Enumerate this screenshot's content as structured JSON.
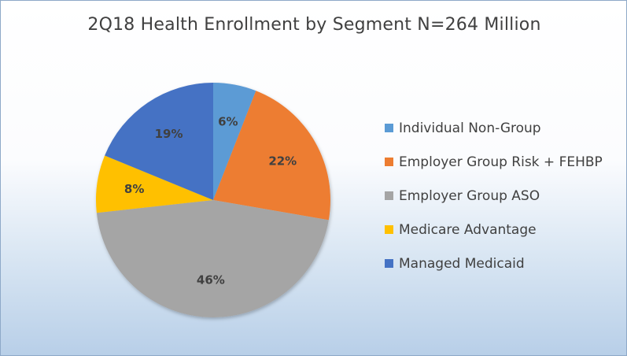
{
  "chart_data": {
    "type": "pie",
    "title": "2Q18 Health Enrollment by Segment N=264 Million",
    "legend_position": "right",
    "slices": [
      {
        "name": "Individual Non-Group",
        "value": 6,
        "label": "6%",
        "color": "#5b9bd5"
      },
      {
        "name": "Employer Group Risk + FEHBP",
        "value": 22,
        "label": "22%",
        "color": "#ed7d31"
      },
      {
        "name": "Employer Group ASO",
        "value": 46,
        "label": "46%",
        "color": "#a5a5a5"
      },
      {
        "name": "Medicare Advantage",
        "value": 8,
        "label": "8%",
        "color": "#ffc000"
      },
      {
        "name": "Managed Medicaid",
        "value": 19,
        "label": "19%",
        "color": "#4472c4"
      }
    ]
  }
}
